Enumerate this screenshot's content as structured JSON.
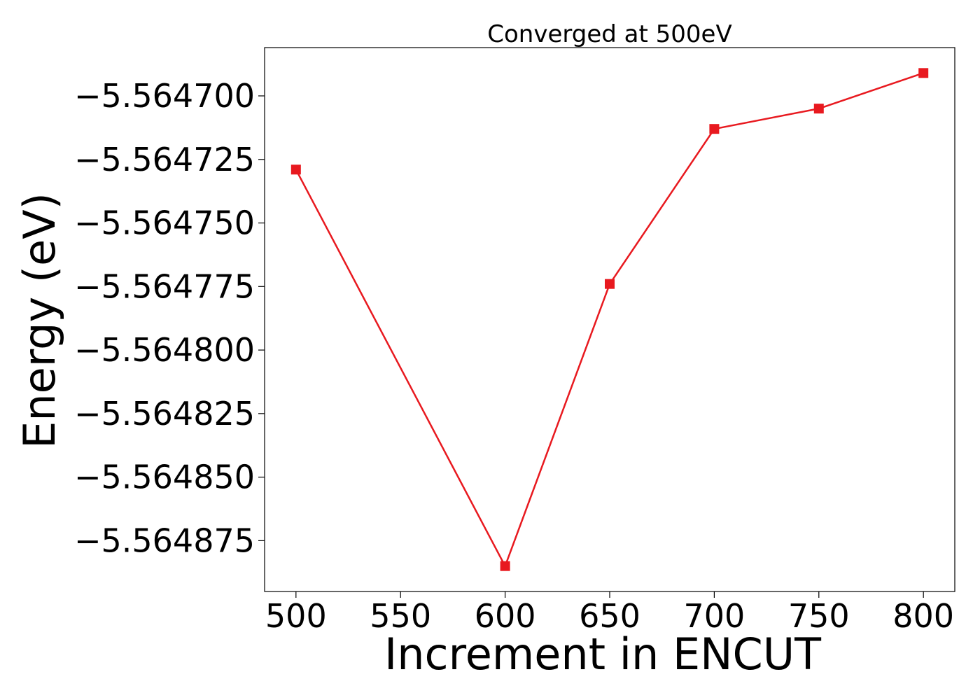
{
  "chart_data": {
    "type": "line",
    "title": "Converged at 500eV",
    "xlabel": "Increment in ENCUT",
    "ylabel": "Energy (eV)",
    "x": [
      500,
      600,
      650,
      700,
      750,
      800
    ],
    "series": [
      {
        "values": [
          -5.564729,
          -5.564885,
          -5.564774,
          -5.564713,
          -5.564705,
          -5.564691
        ],
        "color": "#e8191f",
        "marker": "square"
      }
    ],
    "xlim": [
      485,
      815
    ],
    "ylim": [
      -5.564895,
      -5.564681
    ],
    "xticks": [
      500,
      550,
      600,
      650,
      700,
      750,
      800
    ],
    "xtick_labels": [
      "500",
      "550",
      "600",
      "650",
      "700",
      "750",
      "800"
    ],
    "yticks": [
      -5.5647,
      -5.564725,
      -5.56475,
      -5.564775,
      -5.5648,
      -5.564825,
      -5.56485,
      -5.564875
    ],
    "ytick_labels": [
      "−5.564700",
      "−5.564725",
      "−5.564750",
      "−5.564775",
      "−5.564800",
      "−5.564825",
      "−5.564850",
      "−5.564875"
    ],
    "grid": false,
    "legend": "none"
  }
}
